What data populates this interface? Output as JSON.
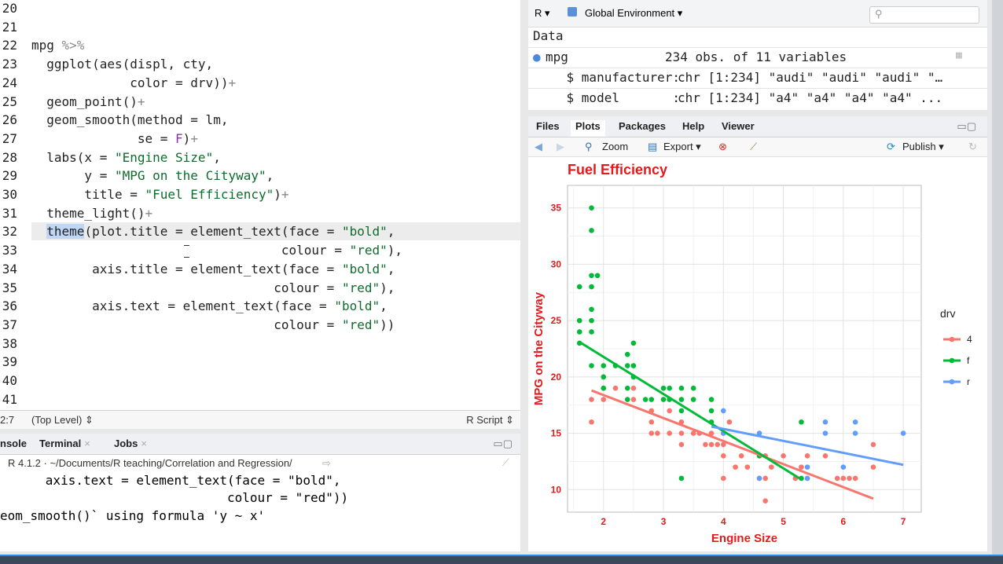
{
  "editor": {
    "lines": [
      {
        "n": "20",
        "parts": []
      },
      {
        "n": "21",
        "parts": []
      },
      {
        "n": "22",
        "parts": [
          {
            "t": "mpg ",
            "c": ""
          },
          {
            "t": "%>%",
            "c": "op2"
          }
        ]
      },
      {
        "n": "23",
        "parts": [
          {
            "t": "  ggplot(aes(displ, cty,",
            "c": ""
          }
        ]
      },
      {
        "n": "24",
        "parts": [
          {
            "t": "             color = drv))",
            "c": ""
          },
          {
            "t": "+",
            "c": "op2"
          }
        ]
      },
      {
        "n": "25",
        "parts": [
          {
            "t": "  geom_point()",
            "c": ""
          },
          {
            "t": "+",
            "c": "op2"
          }
        ]
      },
      {
        "n": "26",
        "parts": [
          {
            "t": "  geom_smooth(method = lm,",
            "c": ""
          }
        ]
      },
      {
        "n": "27",
        "parts": [
          {
            "t": "              se = ",
            "c": ""
          },
          {
            "t": "F",
            "c": "kw"
          },
          {
            "t": ")",
            "c": ""
          },
          {
            "t": "+",
            "c": "op2"
          }
        ]
      },
      {
        "n": "28",
        "parts": [
          {
            "t": "  labs(x = ",
            "c": ""
          },
          {
            "t": "\"Engine Size\"",
            "c": "str"
          },
          {
            "t": ",",
            "c": ""
          }
        ]
      },
      {
        "n": "29",
        "parts": [
          {
            "t": "       y = ",
            "c": ""
          },
          {
            "t": "\"MPG on the Cityway\"",
            "c": "str"
          },
          {
            "t": ",",
            "c": ""
          }
        ]
      },
      {
        "n": "30",
        "parts": [
          {
            "t": "       title = ",
            "c": ""
          },
          {
            "t": "\"Fuel Efficiency\"",
            "c": "str"
          },
          {
            "t": ")",
            "c": ""
          },
          {
            "t": "+",
            "c": "op2"
          }
        ]
      },
      {
        "n": "31",
        "parts": [
          {
            "t": "  theme_light()",
            "c": ""
          },
          {
            "t": "+",
            "c": "op2"
          }
        ]
      },
      {
        "n": "32",
        "parts": [
          {
            "t": "  ",
            "c": ""
          },
          {
            "t": "theme",
            "c": "sel"
          },
          {
            "t": "(plot.title = element_text(face = ",
            "c": ""
          },
          {
            "t": "\"bold\"",
            "c": "str"
          },
          {
            "t": ",",
            "c": ""
          }
        ]
      },
      {
        "n": "33",
        "parts": [
          {
            "t": "                                 colour = ",
            "c": ""
          },
          {
            "t": "\"red\"",
            "c": "str"
          },
          {
            "t": "),",
            "c": ""
          }
        ]
      },
      {
        "n": "34",
        "parts": [
          {
            "t": "        axis.title = element_text(face = ",
            "c": ""
          },
          {
            "t": "\"bold\"",
            "c": "str"
          },
          {
            "t": ",",
            "c": ""
          }
        ]
      },
      {
        "n": "35",
        "parts": [
          {
            "t": "                                colour = ",
            "c": ""
          },
          {
            "t": "\"red\"",
            "c": "str"
          },
          {
            "t": "),",
            "c": ""
          }
        ]
      },
      {
        "n": "36",
        "parts": [
          {
            "t": "        axis.text = element_text(face = ",
            "c": ""
          },
          {
            "t": "\"bold\"",
            "c": "str"
          },
          {
            "t": ",",
            "c": ""
          }
        ]
      },
      {
        "n": "37",
        "parts": [
          {
            "t": "                                colour = ",
            "c": ""
          },
          {
            "t": "\"red\"",
            "c": "str"
          },
          {
            "t": "))",
            "c": ""
          }
        ]
      },
      {
        "n": "38",
        "parts": []
      },
      {
        "n": "39",
        "parts": []
      },
      {
        "n": "40",
        "parts": []
      },
      {
        "n": "41",
        "parts": []
      }
    ],
    "status": {
      "position": "2:7",
      "scope": "(Top Level) ⇕",
      "filetype": "R Script ⇕"
    }
  },
  "console": {
    "tabs": [
      "nsole",
      "Terminal",
      "Jobs"
    ],
    "path": "R 4.1.2 · ~/Documents/R teaching/Correlation and Regression/",
    "output": [
      {
        "text": "      axis.text = element_text(face = \"bold\",",
        "color": "#1a1aa6"
      },
      {
        "text": "                              colour = \"red\"))",
        "color": "#1a1aa6"
      },
      {
        "text": "eom_smooth()` using formula 'y ~ x'",
        "color": "#b30000"
      }
    ]
  },
  "environment": {
    "lang": "R ▾",
    "scope": "Global Environment ▾",
    "section": "Data",
    "rows": [
      {
        "name": "mpg",
        "value": "234 obs. of 11 variables"
      },
      {
        "name": "    $ manufacturer:",
        "value": "chr [1:234] \"audi\" \"audi\" \"audi\" \"…"
      },
      {
        "name": "    $ model       :",
        "value": "chr [1:234] \"a4\" \"a4\" \"a4\" \"a4\" ..."
      }
    ]
  },
  "plots_pane": {
    "tabs": [
      "Files",
      "Plots",
      "Packages",
      "Help",
      "Viewer"
    ],
    "toolbar": {
      "zoom": "Zoom",
      "export": "Export ▾",
      "publish": "Publish ▾"
    }
  },
  "colors": {
    "red": "#f8766d",
    "green": "#00ba38",
    "blue": "#619cff",
    "title": "#e31a1c"
  },
  "chart_data": {
    "type": "scatter",
    "title": "Fuel Efficiency",
    "xlabel": "Engine Size",
    "ylabel": "MPG on the Cityway",
    "xlim": [
      1.4,
      7.3
    ],
    "ylim": [
      8,
      37
    ],
    "xticks": [
      2,
      3,
      4,
      5,
      6,
      7
    ],
    "yticks": [
      10,
      15,
      20,
      25,
      30,
      35
    ],
    "legend_title": "drv",
    "legend_position": "right",
    "grid": true,
    "series": [
      {
        "name": "4",
        "color": "#f8766d",
        "points": [
          [
            1.8,
            16
          ],
          [
            1.8,
            18
          ],
          [
            2.0,
            18
          ],
          [
            2.0,
            19
          ],
          [
            2.2,
            19
          ],
          [
            2.5,
            18
          ],
          [
            2.5,
            19
          ],
          [
            2.8,
            17
          ],
          [
            2.8,
            16
          ],
          [
            2.8,
            15
          ],
          [
            2.9,
            15
          ],
          [
            3.1,
            17
          ],
          [
            3.1,
            15
          ],
          [
            3.3,
            16
          ],
          [
            3.3,
            14
          ],
          [
            3.3,
            15
          ],
          [
            3.5,
            15
          ],
          [
            3.6,
            15
          ],
          [
            3.7,
            14
          ],
          [
            3.8,
            15
          ],
          [
            3.8,
            14
          ],
          [
            3.9,
            14
          ],
          [
            4.0,
            15
          ],
          [
            4.0,
            14
          ],
          [
            4.0,
            13
          ],
          [
            4.0,
            11
          ],
          [
            4.1,
            16
          ],
          [
            4.2,
            12
          ],
          [
            4.3,
            13
          ],
          [
            4.4,
            12
          ],
          [
            4.6,
            13
          ],
          [
            4.6,
            11
          ],
          [
            4.7,
            11
          ],
          [
            4.7,
            13
          ],
          [
            4.7,
            9
          ],
          [
            4.8,
            12
          ],
          [
            5.0,
            13
          ],
          [
            5.2,
            11
          ],
          [
            5.3,
            12
          ],
          [
            5.4,
            11
          ],
          [
            5.4,
            13
          ],
          [
            5.7,
            13
          ],
          [
            5.9,
            11
          ],
          [
            6.0,
            11
          ],
          [
            6.1,
            11
          ],
          [
            6.2,
            11
          ],
          [
            6.5,
            14
          ],
          [
            6.5,
            12
          ]
        ],
        "fit": [
          [
            1.8,
            18.8
          ],
          [
            6.5,
            9.2
          ]
        ]
      },
      {
        "name": "f",
        "color": "#00ba38",
        "points": [
          [
            1.6,
            28
          ],
          [
            1.6,
            25
          ],
          [
            1.6,
            24
          ],
          [
            1.6,
            23
          ],
          [
            1.8,
            35
          ],
          [
            1.8,
            33
          ],
          [
            1.8,
            29
          ],
          [
            1.8,
            28
          ],
          [
            1.8,
            26
          ],
          [
            1.8,
            25
          ],
          [
            1.8,
            24
          ],
          [
            1.8,
            21
          ],
          [
            1.9,
            29
          ],
          [
            2.0,
            21
          ],
          [
            2.0,
            20
          ],
          [
            2.0,
            19
          ],
          [
            2.2,
            21
          ],
          [
            2.4,
            22
          ],
          [
            2.4,
            21
          ],
          [
            2.4,
            19
          ],
          [
            2.4,
            18
          ],
          [
            2.5,
            23
          ],
          [
            2.5,
            21
          ],
          [
            2.5,
            20
          ],
          [
            2.7,
            18
          ],
          [
            2.8,
            18
          ],
          [
            3.0,
            19
          ],
          [
            3.0,
            18
          ],
          [
            3.1,
            19
          ],
          [
            3.1,
            18
          ],
          [
            3.3,
            19
          ],
          [
            3.3,
            18
          ],
          [
            3.3,
            17
          ],
          [
            3.3,
            11
          ],
          [
            3.5,
            19
          ],
          [
            3.5,
            18
          ],
          [
            3.8,
            18
          ],
          [
            3.8,
            17
          ],
          [
            3.8,
            16
          ],
          [
            4.6,
            13
          ],
          [
            5.3,
            16
          ],
          [
            5.3,
            11
          ]
        ],
        "fit": [
          [
            1.6,
            23.1
          ],
          [
            5.3,
            10.9
          ]
        ]
      },
      {
        "name": "r",
        "color": "#619cff",
        "points": [
          [
            4.0,
            17
          ],
          [
            4.0,
            15
          ],
          [
            4.6,
            15
          ],
          [
            4.6,
            11
          ],
          [
            5.4,
            11
          ],
          [
            5.4,
            12
          ],
          [
            5.7,
            16
          ],
          [
            5.7,
            15
          ],
          [
            6.0,
            12
          ],
          [
            6.2,
            16
          ],
          [
            6.2,
            15
          ],
          [
            7.0,
            15
          ]
        ],
        "fit": [
          [
            3.8,
            15.6
          ],
          [
            7.0,
            12.2
          ]
        ]
      }
    ]
  }
}
